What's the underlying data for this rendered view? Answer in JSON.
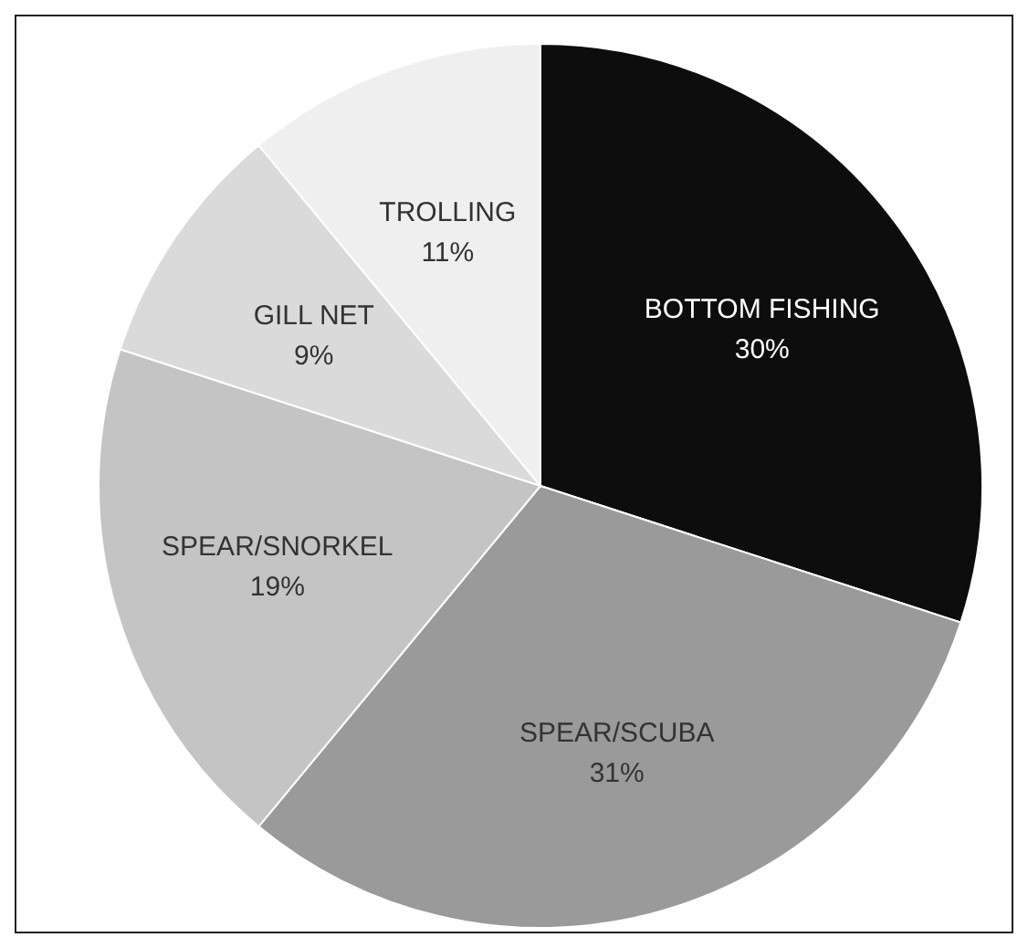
{
  "chart_data": {
    "type": "pie",
    "categories": [
      "BOTTOM FISHING",
      "SPEAR/SCUBA",
      "SPEAR/SNORKEL",
      "GILL NET",
      "TROLLING"
    ],
    "values": [
      30,
      31,
      19,
      9,
      11
    ],
    "colors": [
      "#0d0d0d",
      "#9a9a9a",
      "#c4c4c4",
      "#dadada",
      "#efefef"
    ],
    "value_labels": [
      "30%",
      "31%",
      "19%",
      "9%",
      "11%"
    ],
    "legend": false
  }
}
